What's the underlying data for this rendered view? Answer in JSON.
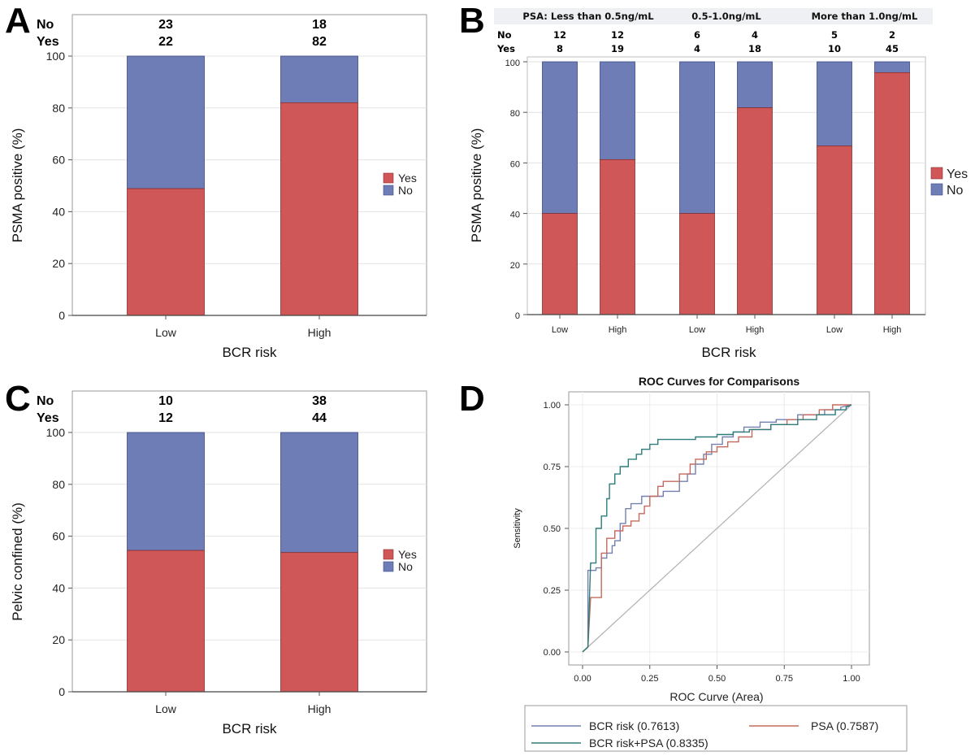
{
  "panels": {
    "A": {
      "label": "A",
      "count_row_labels": [
        "No",
        "Yes"
      ],
      "counts": {
        "No": [
          23,
          18
        ],
        "Yes": [
          22,
          82
        ]
      },
      "legend": [
        "Yes",
        "No"
      ]
    },
    "B": {
      "label": "B",
      "groups": [
        "PSA: Less than 0.5ng/mL",
        "0.5-1.0ng/mL",
        "More than 1.0ng/mL"
      ],
      "count_row_labels": [
        "No",
        "Yes"
      ],
      "counts": {
        "No": [
          12,
          12,
          6,
          4,
          5,
          2
        ],
        "Yes": [
          8,
          19,
          4,
          18,
          10,
          45
        ]
      },
      "legend": [
        "Yes",
        "No"
      ]
    },
    "C": {
      "label": "C",
      "count_row_labels": [
        "No",
        "Yes"
      ],
      "counts": {
        "No": [
          10,
          38
        ],
        "Yes": [
          12,
          44
        ]
      },
      "legend": [
        "Yes",
        "No"
      ]
    },
    "D": {
      "label": "D",
      "legend_title": "ROC Curve (Area)",
      "legend": [
        "BCR risk  (0.7613)",
        "PSA  (0.7587)",
        "BCR risk+PSA  (0.8335)"
      ]
    }
  },
  "colors": {
    "yes": "#d05757",
    "no": "#6f7db6",
    "roc_bcr": "#7480b0",
    "roc_psa": "#c56a5e",
    "roc_combined": "#2e7d7b",
    "diagonal": "#b0b0b0"
  },
  "chart_data": [
    {
      "panel": "A",
      "type": "bar",
      "stacked": true,
      "categories": [
        "Low",
        "High"
      ],
      "series": [
        {
          "name": "Yes",
          "values": [
            48.9,
            82.0
          ]
        },
        {
          "name": "No",
          "values": [
            51.1,
            18.0
          ]
        }
      ],
      "xlabel": "BCR risk",
      "ylabel": "PSMA positive (%)",
      "ylim": [
        0,
        100
      ],
      "yticks": [
        0,
        20,
        40,
        60,
        80,
        100
      ],
      "grid": true,
      "legend_position": "right"
    },
    {
      "panel": "B",
      "type": "bar",
      "stacked": true,
      "categories": [
        "Low",
        "High",
        "Low",
        "High",
        "Low",
        "High"
      ],
      "series": [
        {
          "name": "Yes",
          "values": [
            40.0,
            61.3,
            40.0,
            81.8,
            66.7,
            95.7
          ]
        },
        {
          "name": "No",
          "values": [
            60.0,
            38.7,
            60.0,
            18.2,
            33.3,
            4.3
          ]
        }
      ],
      "xlabel": "BCR risk",
      "ylabel": "PSMA positive (%)",
      "ylim": [
        0,
        100
      ],
      "yticks": [
        0,
        20,
        40,
        60,
        80,
        100
      ],
      "grid": true,
      "legend_position": "right"
    },
    {
      "panel": "C",
      "type": "bar",
      "stacked": true,
      "categories": [
        "Low",
        "High"
      ],
      "series": [
        {
          "name": "Yes",
          "values": [
            54.5,
            53.7
          ]
        },
        {
          "name": "No",
          "values": [
            45.5,
            46.3
          ]
        }
      ],
      "xlabel": "BCR risk",
      "ylabel": "Pelvic confined (%)",
      "ylim": [
        0,
        100
      ],
      "yticks": [
        0,
        20,
        40,
        60,
        80,
        100
      ],
      "grid": true,
      "legend_position": "right"
    },
    {
      "panel": "D",
      "type": "line",
      "title": "ROC Curves for Comparisons",
      "xlabel": "",
      "ylabel": "Sensitivity",
      "xlim": [
        0,
        1
      ],
      "ylim": [
        0,
        1
      ],
      "xticks": [
        "0.00",
        "0.25",
        "0.50",
        "0.75",
        "1.00"
      ],
      "yticks": [
        "0.00",
        "0.25",
        "0.50",
        "0.75",
        "1.00"
      ],
      "grid": true,
      "legend_position": "bottom",
      "series": [
        {
          "name": "BCR risk  (0.7613)",
          "points": [
            [
              0,
              0
            ],
            [
              0.02,
              0.02
            ],
            [
              0.02,
              0.33
            ],
            [
              0.05,
              0.33
            ],
            [
              0.05,
              0.34
            ],
            [
              0.07,
              0.34
            ],
            [
              0.07,
              0.38
            ],
            [
              0.09,
              0.38
            ],
            [
              0.09,
              0.4
            ],
            [
              0.11,
              0.4
            ],
            [
              0.11,
              0.43
            ],
            [
              0.12,
              0.43
            ],
            [
              0.12,
              0.45
            ],
            [
              0.14,
              0.45
            ],
            [
              0.14,
              0.52
            ],
            [
              0.16,
              0.52
            ],
            [
              0.16,
              0.58
            ],
            [
              0.18,
              0.58
            ],
            [
              0.18,
              0.6
            ],
            [
              0.22,
              0.6
            ],
            [
              0.22,
              0.63
            ],
            [
              0.3,
              0.63
            ],
            [
              0.3,
              0.65
            ],
            [
              0.36,
              0.65
            ],
            [
              0.36,
              0.69
            ],
            [
              0.39,
              0.69
            ],
            [
              0.39,
              0.72
            ],
            [
              0.42,
              0.72
            ],
            [
              0.42,
              0.76
            ],
            [
              0.45,
              0.76
            ],
            [
              0.45,
              0.8
            ],
            [
              0.48,
              0.8
            ],
            [
              0.48,
              0.84
            ],
            [
              0.52,
              0.84
            ],
            [
              0.52,
              0.87
            ],
            [
              0.56,
              0.87
            ],
            [
              0.56,
              0.89
            ],
            [
              0.6,
              0.89
            ],
            [
              0.6,
              0.91
            ],
            [
              0.66,
              0.91
            ],
            [
              0.66,
              0.93
            ],
            [
              0.72,
              0.93
            ],
            [
              0.72,
              0.94
            ],
            [
              0.8,
              0.94
            ],
            [
              0.8,
              0.96
            ],
            [
              0.9,
              0.96
            ],
            [
              0.9,
              0.98
            ],
            [
              0.96,
              0.98
            ],
            [
              0.96,
              0.99
            ],
            [
              1,
              1
            ]
          ]
        },
        {
          "name": "PSA  (0.7587)",
          "points": [
            [
              0,
              0
            ],
            [
              0.02,
              0.02
            ],
            [
              0.03,
              0.22
            ],
            [
              0.07,
              0.22
            ],
            [
              0.07,
              0.4
            ],
            [
              0.09,
              0.4
            ],
            [
              0.09,
              0.46
            ],
            [
              0.12,
              0.46
            ],
            [
              0.12,
              0.49
            ],
            [
              0.15,
              0.49
            ],
            [
              0.15,
              0.51
            ],
            [
              0.18,
              0.51
            ],
            [
              0.18,
              0.53
            ],
            [
              0.21,
              0.53
            ],
            [
              0.21,
              0.56
            ],
            [
              0.23,
              0.56
            ],
            [
              0.23,
              0.59
            ],
            [
              0.25,
              0.59
            ],
            [
              0.25,
              0.63
            ],
            [
              0.28,
              0.63
            ],
            [
              0.28,
              0.67
            ],
            [
              0.3,
              0.67
            ],
            [
              0.3,
              0.69
            ],
            [
              0.36,
              0.69
            ],
            [
              0.36,
              0.72
            ],
            [
              0.4,
              0.72
            ],
            [
              0.4,
              0.76
            ],
            [
              0.42,
              0.76
            ],
            [
              0.42,
              0.78
            ],
            [
              0.46,
              0.78
            ],
            [
              0.46,
              0.81
            ],
            [
              0.5,
              0.81
            ],
            [
              0.5,
              0.83
            ],
            [
              0.54,
              0.83
            ],
            [
              0.54,
              0.85
            ],
            [
              0.58,
              0.85
            ],
            [
              0.58,
              0.87
            ],
            [
              0.63,
              0.87
            ],
            [
              0.63,
              0.9
            ],
            [
              0.7,
              0.9
            ],
            [
              0.7,
              0.92
            ],
            [
              0.76,
              0.92
            ],
            [
              0.76,
              0.94
            ],
            [
              0.82,
              0.94
            ],
            [
              0.82,
              0.96
            ],
            [
              0.88,
              0.96
            ],
            [
              0.88,
              0.98
            ],
            [
              0.93,
              0.98
            ],
            [
              0.93,
              1.0
            ],
            [
              1,
              1
            ]
          ]
        },
        {
          "name": "BCR risk+PSA  (0.8335)",
          "points": [
            [
              0,
              0
            ],
            [
              0.02,
              0.02
            ],
            [
              0.03,
              0.36
            ],
            [
              0.05,
              0.36
            ],
            [
              0.05,
              0.5
            ],
            [
              0.07,
              0.5
            ],
            [
              0.07,
              0.55
            ],
            [
              0.09,
              0.55
            ],
            [
              0.09,
              0.62
            ],
            [
              0.1,
              0.62
            ],
            [
              0.1,
              0.68
            ],
            [
              0.12,
              0.68
            ],
            [
              0.12,
              0.72
            ],
            [
              0.14,
              0.72
            ],
            [
              0.14,
              0.75
            ],
            [
              0.17,
              0.75
            ],
            [
              0.17,
              0.78
            ],
            [
              0.2,
              0.78
            ],
            [
              0.2,
              0.8
            ],
            [
              0.22,
              0.8
            ],
            [
              0.22,
              0.82
            ],
            [
              0.25,
              0.82
            ],
            [
              0.25,
              0.84
            ],
            [
              0.28,
              0.84
            ],
            [
              0.28,
              0.86
            ],
            [
              0.42,
              0.86
            ],
            [
              0.42,
              0.87
            ],
            [
              0.5,
              0.87
            ],
            [
              0.5,
              0.88
            ],
            [
              0.56,
              0.88
            ],
            [
              0.56,
              0.89
            ],
            [
              0.62,
              0.89
            ],
            [
              0.62,
              0.9
            ],
            [
              0.7,
              0.9
            ],
            [
              0.7,
              0.92
            ],
            [
              0.8,
              0.92
            ],
            [
              0.8,
              0.94
            ],
            [
              0.87,
              0.94
            ],
            [
              0.87,
              0.96
            ],
            [
              0.94,
              0.96
            ],
            [
              0.94,
              0.98
            ],
            [
              0.98,
              0.98
            ],
            [
              0.98,
              0.99
            ],
            [
              1,
              1
            ]
          ]
        }
      ]
    }
  ]
}
